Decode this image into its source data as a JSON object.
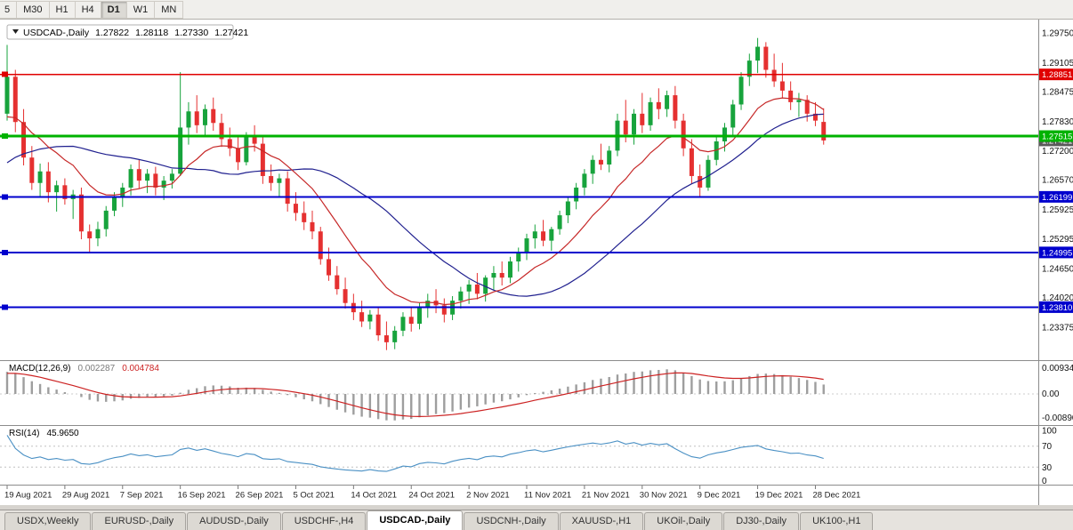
{
  "toolbar": {
    "timeframes": [
      "5",
      "M30",
      "H1",
      "H4",
      "D1",
      "W1",
      "MN"
    ],
    "active": "D1"
  },
  "chart": {
    "legend": {
      "symbol": "USDCAD-,Daily",
      "open": "1.27822",
      "high": "1.28118",
      "low": "1.27330",
      "close": "1.27421"
    },
    "price_axis_labels": [
      "1.29750",
      "1.29105",
      "1.28475",
      "1.27830",
      "1.27200",
      "1.26570",
      "1.25925",
      "1.25295",
      "1.24650",
      "1.24020",
      "1.23375"
    ],
    "hlines": [
      {
        "price": 1.28851,
        "label": "1.28851",
        "color": "#e00000",
        "width": 1.4,
        "name": "resistance-line-red"
      },
      {
        "price": 1.27515,
        "label": "1.27515",
        "color": "#00b200",
        "width": 3,
        "name": "support-line-green"
      },
      {
        "price": 1.26199,
        "label": "1.26199",
        "color": "#0000cd",
        "width": 2,
        "name": "support-line-blue-1"
      },
      {
        "price": 1.24995,
        "label": "1.24995",
        "color": "#0000cd",
        "width": 2,
        "name": "support-line-blue-2"
      },
      {
        "price": 1.2381,
        "label": "1.23810",
        "color": "#0000cd",
        "width": 2,
        "name": "support-line-blue-3"
      }
    ],
    "current_price": {
      "value": 1.27421,
      "label": "1.27421",
      "bg": "#5a5a5a"
    },
    "date_labels": [
      "19 Aug 2021",
      "29 Aug 2021",
      "7 Sep 2021",
      "16 Sep 2021",
      "26 Sep 2021",
      "5 Oct 2021",
      "14 Oct 2021",
      "24 Oct 2021",
      "2 Nov 2021",
      "11 Nov 2021",
      "21 Nov 2021",
      "30 Nov 2021",
      "9 Dec 2021",
      "19 Dec 2021",
      "28 Dec 2021"
    ],
    "colors": {
      "bull": "#17a33c",
      "bear": "#e53030",
      "ma_fast": "#c62828",
      "ma_slow": "#20208f",
      "axis_text": "#111111"
    },
    "warmup_closes": [
      1.246,
      1.248,
      1.25,
      1.252,
      1.254,
      1.256,
      1.258,
      1.26,
      1.262,
      1.264,
      1.266,
      1.268,
      1.27,
      1.269,
      1.271,
      1.273,
      1.275,
      1.277,
      1.276,
      1.278,
      1.28,
      1.279,
      1.281,
      1.283,
      1.282,
      1.284
    ],
    "candles": [
      [
        1.28,
        1.2949,
        1.2785,
        1.288
      ],
      [
        1.288,
        1.2895,
        1.276,
        1.2782
      ],
      [
        1.2782,
        1.281,
        1.2688,
        1.2705
      ],
      [
        1.2705,
        1.273,
        1.2635,
        1.265
      ],
      [
        1.265,
        1.2692,
        1.2618,
        1.2675
      ],
      [
        1.2675,
        1.2695,
        1.2608,
        1.263
      ],
      [
        1.263,
        1.2655,
        1.2588,
        1.2645
      ],
      [
        1.2645,
        1.266,
        1.2603,
        1.2615
      ],
      [
        1.2615,
        1.2635,
        1.2572,
        1.2625
      ],
      [
        1.2625,
        1.264,
        1.2528,
        1.2545
      ],
      [
        1.2545,
        1.256,
        1.2498,
        1.253
      ],
      [
        1.253,
        1.2566,
        1.2513,
        1.255
      ],
      [
        1.255,
        1.26,
        1.2534,
        1.259
      ],
      [
        1.259,
        1.263,
        1.2578,
        1.262
      ],
      [
        1.262,
        1.265,
        1.2598,
        1.264
      ],
      [
        1.264,
        1.269,
        1.2623,
        1.268
      ],
      [
        1.268,
        1.27,
        1.2638,
        1.2655
      ],
      [
        1.2655,
        1.268,
        1.2628,
        1.267
      ],
      [
        1.267,
        1.2685,
        1.2623,
        1.264
      ],
      [
        1.264,
        1.2665,
        1.2613,
        1.2655
      ],
      [
        1.2655,
        1.268,
        1.2638,
        1.267
      ],
      [
        1.267,
        1.289,
        1.2665,
        1.277
      ],
      [
        1.277,
        1.2825,
        1.2733,
        1.2805
      ],
      [
        1.2805,
        1.284,
        1.2758,
        1.2775
      ],
      [
        1.2775,
        1.282,
        1.2753,
        1.281
      ],
      [
        1.281,
        1.2835,
        1.2763,
        1.278
      ],
      [
        1.278,
        1.28,
        1.2728,
        1.2745
      ],
      [
        1.2745,
        1.277,
        1.2708,
        1.2725
      ],
      [
        1.2725,
        1.275,
        1.2678,
        1.2695
      ],
      [
        1.2695,
        1.276,
        1.2688,
        1.275
      ],
      [
        1.275,
        1.2775,
        1.2718,
        1.2735
      ],
      [
        1.2735,
        1.275,
        1.2648,
        1.2665
      ],
      [
        1.2665,
        1.269,
        1.2633,
        1.265
      ],
      [
        1.265,
        1.267,
        1.2618,
        1.266
      ],
      [
        1.266,
        1.2675,
        1.2588,
        1.2605
      ],
      [
        1.2605,
        1.263,
        1.2568,
        1.2585
      ],
      [
        1.2585,
        1.261,
        1.2548,
        1.2565
      ],
      [
        1.2565,
        1.259,
        1.2528,
        1.2545
      ],
      [
        1.2545,
        1.2555,
        1.2473,
        1.2485
      ],
      [
        1.2485,
        1.251,
        1.2438,
        1.245
      ],
      [
        1.245,
        1.247,
        1.2408,
        1.242
      ],
      [
        1.242,
        1.2445,
        1.2378,
        1.239
      ],
      [
        1.239,
        1.241,
        1.2353,
        1.237
      ],
      [
        1.237,
        1.2395,
        1.2338,
        1.235
      ],
      [
        1.235,
        1.2375,
        1.2333,
        1.2365
      ],
      [
        1.2365,
        1.238,
        1.2308,
        1.232
      ],
      [
        1.232,
        1.235,
        1.2288,
        1.2305
      ],
      [
        1.2305,
        1.234,
        1.229,
        1.233
      ],
      [
        1.233,
        1.237,
        1.2318,
        1.236
      ],
      [
        1.236,
        1.238,
        1.2328,
        1.2345
      ],
      [
        1.2345,
        1.239,
        1.2333,
        1.238
      ],
      [
        1.238,
        1.241,
        1.2358,
        1.2395
      ],
      [
        1.2395,
        1.242,
        1.2368,
        1.2385
      ],
      [
        1.2385,
        1.24,
        1.2348,
        1.2365
      ],
      [
        1.2365,
        1.2405,
        1.2353,
        1.2395
      ],
      [
        1.2395,
        1.2425,
        1.2378,
        1.2415
      ],
      [
        1.2415,
        1.244,
        1.2388,
        1.243
      ],
      [
        1.243,
        1.2455,
        1.2398,
        1.241
      ],
      [
        1.241,
        1.245,
        1.2393,
        1.2445
      ],
      [
        1.2445,
        1.247,
        1.2418,
        1.2455
      ],
      [
        1.2455,
        1.248,
        1.2428,
        1.2445
      ],
      [
        1.2445,
        1.249,
        1.2433,
        1.248
      ],
      [
        1.248,
        1.251,
        1.2458,
        1.25
      ],
      [
        1.25,
        1.254,
        1.2483,
        1.253
      ],
      [
        1.253,
        1.256,
        1.2508,
        1.2545
      ],
      [
        1.2545,
        1.257,
        1.2513,
        1.2525
      ],
      [
        1.2525,
        1.2555,
        1.2503,
        1.255
      ],
      [
        1.255,
        1.259,
        1.2538,
        1.258
      ],
      [
        1.258,
        1.262,
        1.2563,
        1.261
      ],
      [
        1.261,
        1.265,
        1.2593,
        1.264
      ],
      [
        1.264,
        1.268,
        1.2623,
        1.267
      ],
      [
        1.267,
        1.271,
        1.2648,
        1.27
      ],
      [
        1.27,
        1.2735,
        1.2678,
        1.269
      ],
      [
        1.269,
        1.273,
        1.2673,
        1.272
      ],
      [
        1.272,
        1.28,
        1.2708,
        1.2785
      ],
      [
        1.2785,
        1.283,
        1.2738,
        1.2755
      ],
      [
        1.2755,
        1.281,
        1.2733,
        1.28
      ],
      [
        1.28,
        1.2845,
        1.2758,
        1.2775
      ],
      [
        1.2775,
        1.2835,
        1.2763,
        1.2825
      ],
      [
        1.2825,
        1.2855,
        1.2788,
        1.281
      ],
      [
        1.281,
        1.285,
        1.2793,
        1.284
      ],
      [
        1.284,
        1.286,
        1.2768,
        1.2785
      ],
      [
        1.2785,
        1.28,
        1.2708,
        1.2725
      ],
      [
        1.2725,
        1.2745,
        1.2648,
        1.2665
      ],
      [
        1.2665,
        1.269,
        1.262,
        1.264
      ],
      [
        1.264,
        1.271,
        1.2633,
        1.27
      ],
      [
        1.27,
        1.275,
        1.2688,
        1.274
      ],
      [
        1.274,
        1.278,
        1.2718,
        1.277
      ],
      [
        1.277,
        1.283,
        1.2753,
        1.282
      ],
      [
        1.282,
        1.289,
        1.2808,
        1.288
      ],
      [
        1.288,
        1.293,
        1.286,
        1.2915
      ],
      [
        1.2915,
        1.2964,
        1.2888,
        1.2945
      ],
      [
        1.2945,
        1.2955,
        1.2878,
        1.2895
      ],
      [
        1.2895,
        1.293,
        1.2858,
        1.287
      ],
      [
        1.287,
        1.291,
        1.2833,
        1.285
      ],
      [
        1.285,
        1.287,
        1.2808,
        1.2825
      ],
      [
        1.2825,
        1.2845,
        1.2793,
        1.283
      ],
      [
        1.283,
        1.284,
        1.2783,
        1.28
      ],
      [
        1.28,
        1.2825,
        1.2773,
        1.2785
      ],
      [
        1.27822,
        1.28118,
        1.2733,
        1.27421
      ]
    ]
  },
  "macd": {
    "title": "MACD(12,26,9)",
    "value_main": "0.002287",
    "value_signal": "0.004784",
    "axis_labels": [
      "0.009345",
      "0.00",
      "-0.008900"
    ],
    "fast": 12,
    "slow": 26,
    "signal": 9,
    "hist_color": "#9e9e9e",
    "signal_color": "#cc2222"
  },
  "rsi": {
    "title": "RSI(14)",
    "value": "45.9650",
    "axis_labels": [
      "100",
      "70",
      "30",
      "0"
    ],
    "levels": [
      70,
      30
    ],
    "period": 14,
    "line_color": "#4a90c4"
  },
  "tabs": {
    "active_index": 4,
    "items": [
      {
        "label": "USDX,Weekly"
      },
      {
        "label": "EURUSD-,Daily"
      },
      {
        "label": "AUDUSD-,Daily"
      },
      {
        "label": "USDCHF-,H4"
      },
      {
        "label": "USDCAD-,Daily"
      },
      {
        "label": "USDCNH-,Daily"
      },
      {
        "label": "XAUUSD-,H1"
      },
      {
        "label": "UKOil-,Daily"
      },
      {
        "label": "DJ30-,Daily"
      },
      {
        "label": "UK100-,H1"
      }
    ]
  }
}
